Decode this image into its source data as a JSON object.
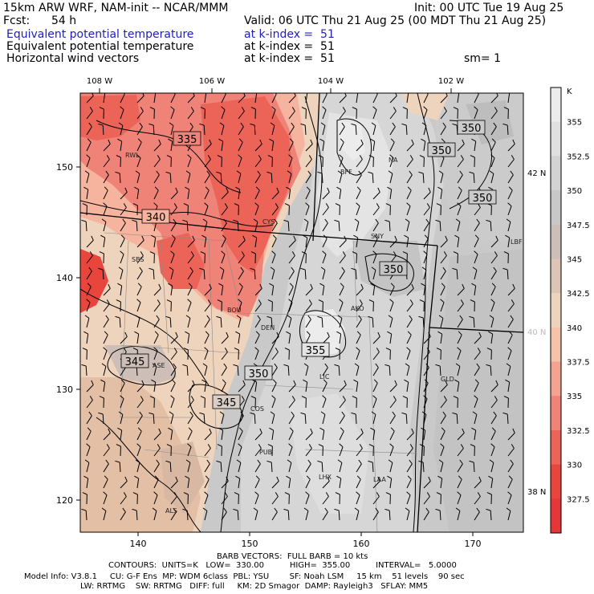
{
  "header": {
    "model": "15km ARW WRF, NAM-init -- NCAR/MMM",
    "init": "Init: 00 UTC Tue 19 Aug 25",
    "fcst_label": "Fcst:",
    "fcst_value": "54 h",
    "valid": "Valid: 06 UTC Thu 21 Aug 25 (00 MDT Thu 21 Aug 25)",
    "fields": [
      {
        "name": "Equivalent potential temperature",
        "level": "at k-index =  51"
      },
      {
        "name": "Equivalent potential temperature",
        "level": "at k-index =  51"
      },
      {
        "name": "Horizontal wind vectors",
        "level": "at k-index =  51"
      }
    ],
    "smoothing": "sm= 1"
  },
  "map": {
    "top_lon_labels": [
      "108 W",
      "106 W",
      "104 W",
      "102 W"
    ],
    "right_lat_labels": [
      "42 N",
      "40 N",
      "38 N"
    ],
    "left_grid_labels": [
      "150",
      "140",
      "130",
      "120"
    ],
    "bottom_grid_labels": [
      "140",
      "150",
      "160",
      "170"
    ],
    "stations": [
      "RWL",
      "BFF",
      "NA",
      "CYS",
      "SNY",
      "SBS",
      "BOU",
      "AKO",
      "DEN",
      "LIC",
      "GLD",
      "COS",
      "PUB",
      "LHX",
      "LAA",
      "ALS",
      "LBF",
      "ASE"
    ],
    "contour_labels": [
      "335",
      "340",
      "350",
      "350",
      "350",
      "350",
      "355",
      "345",
      "350",
      "345"
    ],
    "colors": {
      "warm_deep": "#e8453c",
      "warm_mid": "#f08378",
      "warm_light": "#f6b49e",
      "tan": "#eed3bd",
      "gray_warm": "#cdbfb7",
      "gray_mid": "#c6c6c6",
      "gray_light": "#dadada",
      "gray_pale": "#ececec"
    }
  },
  "colorbar": {
    "unit": "K",
    "labels": [
      "355",
      "352.5",
      "350",
      "347.5",
      "345",
      "342.5",
      "340",
      "337.5",
      "335",
      "332.5",
      "330",
      "327.5"
    ],
    "colors": [
      "#ececec",
      "#e0e0e0",
      "#d3d3d3",
      "#c8c8c8",
      "#ccbfb9",
      "#dcc5b6",
      "#eed3bd",
      "#f6c3aa",
      "#f4a391",
      "#f08378",
      "#ec6458",
      "#e8453c",
      "#e5373a"
    ]
  },
  "footer": {
    "barb_line": "BARB VECTORS:  FULL BARB = 10 kts",
    "contours_line": "CONTOURS:  UNITS=K   LOW=  330.00          HIGH=  355.00          INTERVAL=   5.0000",
    "model_info": "Model Info: V3.8.1     CU: G-F Ens  MP: WDM 6class  PBL: YSU        SF: Noah LSM     15 km    51 levels    90 sec",
    "physics": "LW: RRTMG    SW: RRTMG   DIFF: full     KM: 2D Smagor  DAMP: Rayleigh3   SFLAY: MM5"
  }
}
